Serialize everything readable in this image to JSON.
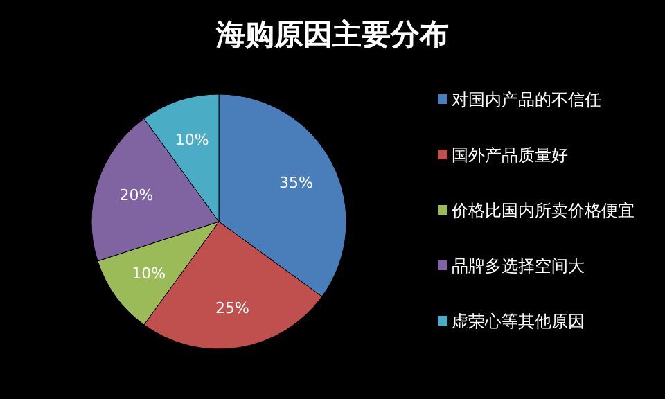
{
  "chart_data": {
    "type": "pie",
    "title": "海购原因主要分布",
    "categories": [
      "对国内产品的不信任",
      "国外产品质量好",
      "价格比国内所卖价格便宜",
      "品牌多选择空间大",
      "虚荣心等其他原因"
    ],
    "values": [
      35,
      25,
      10,
      20,
      10
    ],
    "value_labels": [
      "35%",
      "25%",
      "10%",
      "20%",
      "10%"
    ],
    "colors": [
      "#4a7ebb",
      "#c0504d",
      "#9bbb59",
      "#8064a2",
      "#4bacc6"
    ],
    "legend": "right"
  }
}
